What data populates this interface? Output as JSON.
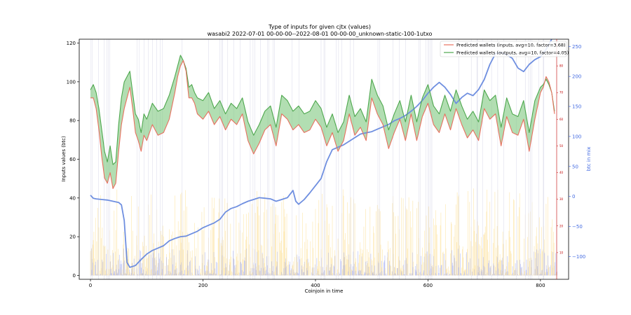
{
  "chart_data": {
    "type": "line",
    "title": "Type of inputs for given cjtx (values)",
    "subtitle": "wasabi2 2022-07-01 00-00-00--2022-08-01 00-00-00_unknown-static-100-1utxo",
    "xlabel": "Coinjoin in time",
    "ylabel": "Inputs values (btc)",
    "y2label": "btc in mix",
    "xlim": [
      -20,
      850
    ],
    "ylim": [
      -2,
      122
    ],
    "y2lim": [
      -138,
      262
    ],
    "y3lim": [
      0,
      90
    ],
    "x_ticks": [
      0,
      200,
      400,
      600,
      800
    ],
    "y_ticks": [
      0,
      20,
      40,
      60,
      80,
      100,
      120
    ],
    "y2_ticks": [
      -100,
      -50,
      0,
      50,
      100,
      150,
      200,
      250
    ],
    "y3_ticks": [
      10,
      20,
      30,
      40,
      50,
      60,
      70,
      80
    ],
    "legend_position": "top-right",
    "colors": {
      "inputs": "#e8705f",
      "outputs": "#4ea74e",
      "fill": "#7ec87e",
      "btc_in_mix": "#6f8fe0",
      "bars_light": "#fde3a3",
      "bars_blue": "#9aa6f2"
    },
    "series": [
      {
        "name": "Predicted wallets (inputs, avg=10, factor=3.68)",
        "axis": "right-red",
        "x": [
          0,
          5,
          10,
          15,
          20,
          25,
          30,
          35,
          40,
          45,
          50,
          55,
          60,
          65,
          70,
          75,
          80,
          85,
          90,
          95,
          100,
          110,
          120,
          130,
          140,
          150,
          155,
          160,
          165,
          170,
          175,
          180,
          185,
          190,
          200,
          210,
          220,
          230,
          240,
          250,
          260,
          270,
          280,
          290,
          300,
          310,
          320,
          330,
          340,
          350,
          360,
          370,
          380,
          390,
          400,
          410,
          420,
          430,
          440,
          450,
          460,
          470,
          480,
          490,
          500,
          510,
          520,
          530,
          540,
          550,
          560,
          570,
          580,
          590,
          600,
          610,
          620,
          630,
          640,
          650,
          660,
          670,
          680,
          690,
          700,
          710,
          720,
          730,
          740,
          750,
          760,
          770,
          780,
          790,
          800,
          805,
          810,
          815,
          820,
          825
        ],
        "values": [
          68,
          68,
          64,
          56,
          46,
          38,
          36,
          40,
          34,
          36,
          48,
          58,
          64,
          68,
          72,
          64,
          55,
          52,
          48,
          54,
          52,
          58,
          54,
          55,
          60,
          70,
          76,
          80,
          82,
          78,
          68,
          68,
          66,
          62,
          60,
          63,
          58,
          61,
          56,
          60,
          58,
          62,
          52,
          47,
          51,
          56,
          58,
          50,
          62,
          60,
          56,
          58,
          55,
          56,
          60,
          57,
          50,
          55,
          48,
          52,
          62,
          54,
          57,
          52,
          68,
          62,
          58,
          49,
          55,
          60,
          52,
          62,
          52,
          61,
          66,
          58,
          55,
          62,
          56,
          64,
          58,
          53,
          56,
          52,
          64,
          60,
          62,
          50,
          61,
          55,
          54,
          60,
          48,
          60,
          70,
          72,
          76,
          74,
          70,
          62
        ]
      },
      {
        "name": "Predicted wallets (outputs, avg=10, factor=4.05)",
        "axis": "right-red",
        "x": [
          0,
          5,
          10,
          15,
          20,
          25,
          30,
          35,
          40,
          45,
          50,
          55,
          60,
          65,
          70,
          75,
          80,
          85,
          90,
          95,
          100,
          110,
          120,
          130,
          140,
          150,
          155,
          160,
          165,
          170,
          175,
          180,
          185,
          190,
          200,
          210,
          220,
          230,
          240,
          250,
          260,
          270,
          280,
          290,
          300,
          310,
          320,
          330,
          340,
          350,
          360,
          370,
          380,
          390,
          400,
          410,
          420,
          430,
          440,
          450,
          460,
          470,
          480,
          490,
          500,
          510,
          520,
          530,
          540,
          550,
          560,
          570,
          580,
          590,
          600,
          610,
          620,
          630,
          640,
          650,
          660,
          670,
          680,
          690,
          700,
          710,
          720,
          730,
          740,
          750,
          760,
          770,
          780,
          790,
          800,
          805,
          810,
          815,
          820,
          825
        ],
        "values": [
          71,
          73,
          70,
          64,
          56,
          48,
          44,
          50,
          43,
          44,
          58,
          68,
          74,
          76,
          78,
          70,
          62,
          60,
          55,
          62,
          60,
          66,
          63,
          64,
          69,
          76,
          80,
          84,
          82,
          79,
          72,
          73,
          70,
          68,
          67,
          70,
          64,
          67,
          62,
          66,
          64,
          68,
          59,
          54,
          58,
          63,
          65,
          57,
          69,
          67,
          63,
          65,
          62,
          63,
          67,
          64,
          57,
          62,
          55,
          59,
          69,
          61,
          64,
          59,
          75,
          69,
          65,
          56,
          62,
          67,
          59,
          69,
          59,
          68,
          73,
          65,
          62,
          69,
          63,
          71,
          65,
          60,
          63,
          59,
          71,
          67,
          69,
          57,
          68,
          62,
          61,
          67,
          55,
          67,
          72,
          73,
          75,
          73,
          70,
          63
        ]
      },
      {
        "name": "btc in mix",
        "axis": "right-blue",
        "x": [
          0,
          5,
          10,
          20,
          30,
          40,
          50,
          55,
          60,
          65,
          70,
          80,
          90,
          100,
          110,
          120,
          130,
          140,
          150,
          160,
          170,
          180,
          190,
          200,
          210,
          220,
          230,
          240,
          250,
          260,
          270,
          280,
          290,
          300,
          310,
          320,
          330,
          340,
          350,
          360,
          365,
          370,
          380,
          390,
          400,
          410,
          420,
          430,
          440,
          450,
          460,
          470,
          480,
          490,
          500,
          510,
          520,
          530,
          540,
          550,
          560,
          570,
          580,
          590,
          600,
          610,
          620,
          630,
          640,
          650,
          660,
          670,
          680,
          690,
          700,
          710,
          720,
          730,
          740,
          750,
          760,
          770,
          780,
          790,
          800,
          810,
          820
        ],
        "values": [
          2,
          -3,
          -4,
          -5,
          -6,
          -8,
          -10,
          -14,
          -40,
          -110,
          -118,
          -115,
          -105,
          -96,
          -90,
          -86,
          -82,
          -74,
          -70,
          -67,
          -66,
          -62,
          -58,
          -52,
          -48,
          -44,
          -38,
          -26,
          -20,
          -17,
          -12,
          -8,
          -5,
          -2,
          -3,
          -4,
          -8,
          -5,
          -2,
          10,
          -8,
          -13,
          -5,
          6,
          18,
          30,
          58,
          78,
          82,
          86,
          92,
          98,
          104,
          106,
          108,
          112,
          116,
          120,
          126,
          130,
          135,
          142,
          150,
          160,
          172,
          182,
          190,
          182,
          170,
          155,
          165,
          172,
          168,
          178,
          195,
          220,
          238,
          240,
          236,
          230,
          214,
          208,
          220,
          228,
          233,
          245,
          262
        ]
      }
    ]
  }
}
